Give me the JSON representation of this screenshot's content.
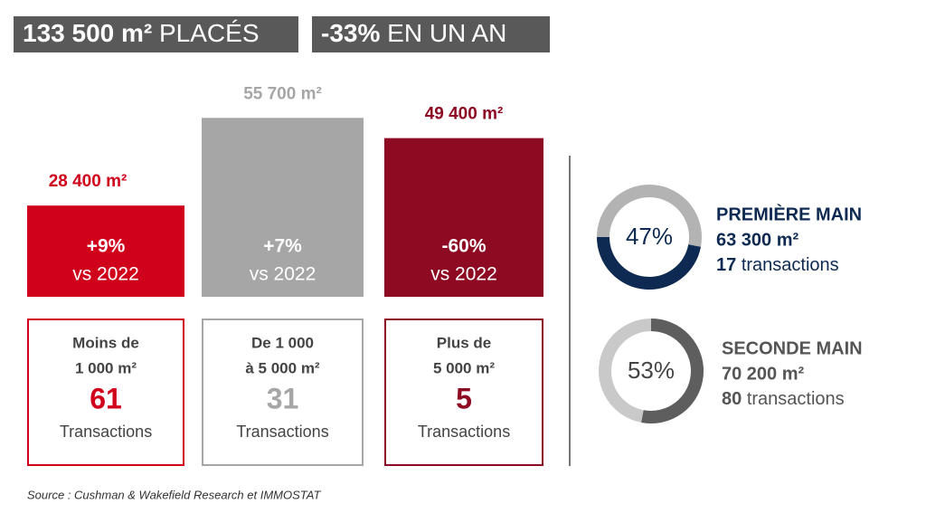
{
  "header": {
    "badges": [
      {
        "strong": "133 500 m²",
        "rest": "PLACÉS"
      },
      {
        "strong": "-33%",
        "rest": "EN UN AN"
      }
    ]
  },
  "chart_data": [
    {
      "type": "bar",
      "categories": [
        [
          "Moins de",
          "1 000 m²"
        ],
        [
          "De 1 000",
          "à 5 000 m²"
        ],
        [
          "Plus de",
          "5 000 m²"
        ]
      ],
      "values": [
        28400,
        55700,
        49400
      ],
      "value_labels": [
        "28 400 m²",
        "55 700 m²",
        "49 400 m²"
      ],
      "colors": [
        "#d0021b",
        "#a6a6a6",
        "#8e0a23"
      ],
      "changes": [
        {
          "change": "+9%",
          "vs": "vs 2022"
        },
        {
          "change": "+7%",
          "vs": "vs 2022"
        },
        {
          "change": "-60%",
          "vs": "vs 2022"
        }
      ],
      "transactions": [
        61,
        31,
        5
      ],
      "transaction_words": [
        "Transactions",
        "Transactions",
        "Transactions"
      ],
      "ylim": [
        0,
        60000
      ]
    },
    {
      "type": "donut",
      "categories": [
        "PREMIÈRE MAIN",
        "SECONDE MAIN"
      ],
      "values": [
        47,
        53
      ],
      "value_labels": [
        "47%",
        "53%"
      ],
      "colors": [
        "#0e2a52",
        "#5e5e5e"
      ],
      "track_colors": [
        "#b3b3b3",
        "#c9c9c9"
      ],
      "areas": [
        "63 300 m²",
        "70 200 m²"
      ],
      "transactions": [
        17,
        80
      ],
      "transaction_words": [
        "transactions",
        "transactions"
      ]
    }
  ],
  "source": "Source : Cushman & Wakefield Research et IMMOSTAT"
}
